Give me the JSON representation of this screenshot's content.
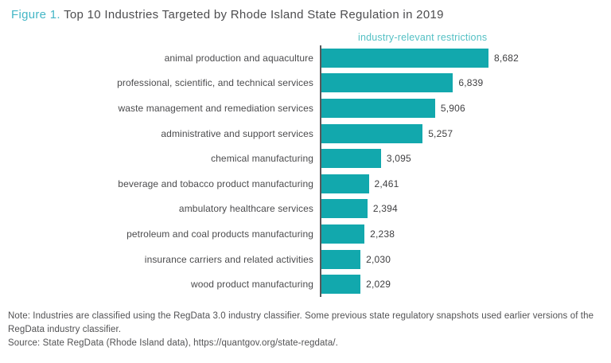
{
  "header": {
    "figure_label": "Figure 1.",
    "title": "Top 10 Industries Targeted by Rhode Island State Regulation in 2019"
  },
  "legend": {
    "label": "industry-relevant restrictions"
  },
  "colors": {
    "bar": "#12a8ad",
    "figure_label": "#44b6c6",
    "legend_label": "#54c0c4",
    "axis": "#58585a",
    "title_text": "#4d4d4f"
  },
  "chart_data": {
    "type": "bar",
    "orientation": "horizontal",
    "title": "Top 10 Industries Targeted by Rhode Island State Regulation in 2019",
    "xlabel": "industry-relevant restrictions",
    "ylabel": "",
    "xlim": [
      0,
      8682
    ],
    "grid": false,
    "legend_position": "top",
    "categories": [
      "animal production and aquaculture",
      "professional, scientific, and technical services",
      "waste management and remediation services",
      "administrative and support services",
      "chemical manufacturing",
      "beverage and tobacco product manufacturing",
      "ambulatory healthcare services",
      "petroleum and coal products manufacturing",
      "insurance carriers and related activities",
      "wood product manufacturing"
    ],
    "values": [
      8682,
      6839,
      5906,
      5257,
      3095,
      2461,
      2394,
      2238,
      2030,
      2029
    ],
    "value_labels": [
      "8,682",
      "6,839",
      "5,906",
      "5,257",
      "3,095",
      "2,461",
      "2,394",
      "2,238",
      "2,030",
      "2,029"
    ]
  },
  "notes": {
    "note_line": "Note: Industries are classified using the RegData 3.0 industry classifier. Some previous state regulatory snapshots used earlier versions of the RegData industry classifier.",
    "source_line": "Source: State RegData (Rhode Island data), https://quantgov.org/state-regdata/."
  }
}
